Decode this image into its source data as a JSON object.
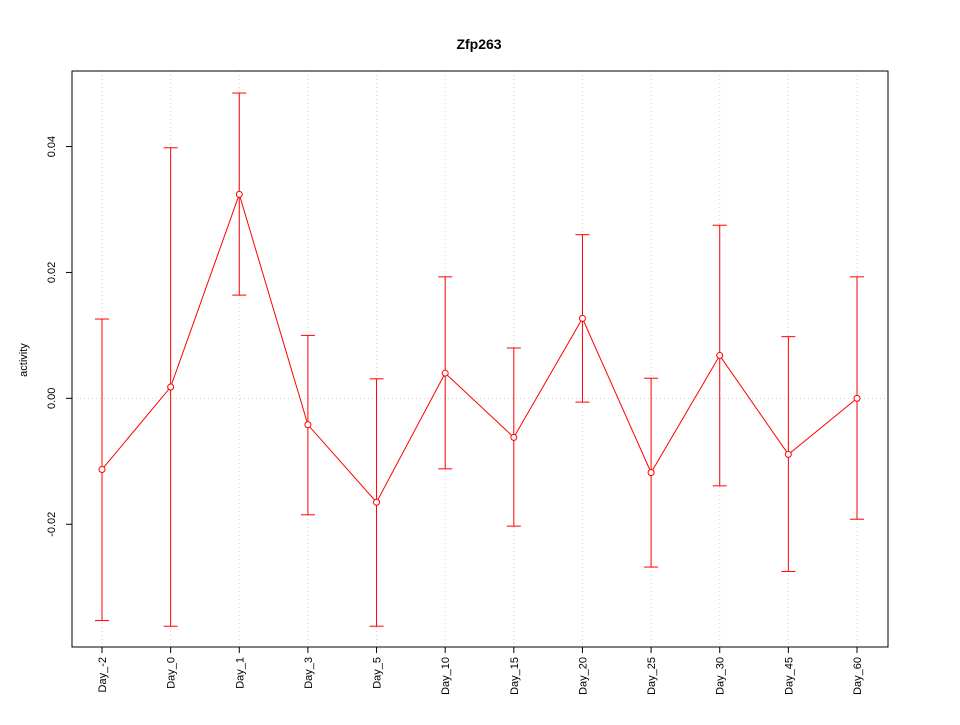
{
  "chart_data": {
    "type": "line",
    "title": "Zfp263",
    "xlabel": "",
    "ylabel": "activity",
    "categories": [
      "Day_-2",
      "Day_0",
      "Day_1",
      "Day_3",
      "Day_5",
      "Day_10",
      "Day_15",
      "Day_20",
      "Day_25",
      "Day_30",
      "Day_45",
      "Day_60"
    ],
    "series": [
      {
        "values": [
          -0.0113,
          0.0018,
          0.0324,
          -0.0042,
          -0.0165,
          0.004,
          -0.0062,
          0.0127,
          -0.0118,
          0.0068,
          -0.0089,
          0.0
        ],
        "upper": [
          0.0126,
          0.0398,
          0.0485,
          0.01,
          0.0031,
          0.0193,
          0.008,
          0.026,
          0.0032,
          0.0275,
          0.0098,
          0.0193
        ],
        "lower": [
          -0.0353,
          -0.0362,
          0.0164,
          -0.0185,
          -0.0362,
          -0.0112,
          -0.0203,
          -0.0006,
          -0.0268,
          -0.0139,
          -0.0275,
          -0.0192
        ]
      }
    ],
    "ylim": [
      -0.0395,
      0.052
    ],
    "yticks": [
      -0.02,
      0.0,
      0.02,
      0.04
    ],
    "ytick_labels": [
      "-0.02",
      "0.00",
      "0.02",
      "0.04"
    ],
    "grid": "dotted",
    "colors": {
      "series": "#ff0000",
      "grid": "#d3d3d3",
      "axis": "#000000"
    }
  }
}
